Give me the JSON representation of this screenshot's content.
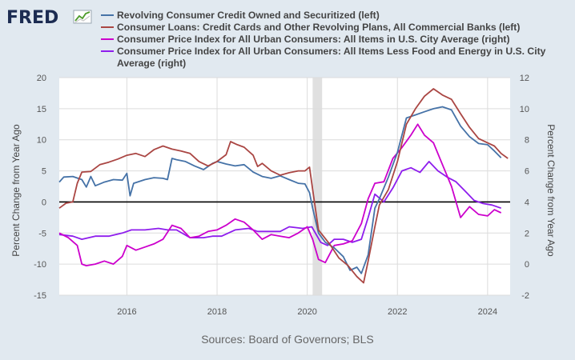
{
  "logo": {
    "text": "FRED"
  },
  "source": "Sources: Board of Governors; BLS",
  "chart_data": {
    "type": "line",
    "title": "",
    "ylabel_left": "Percent Change from Year Ago",
    "ylabel_right": "Percent Change from Year Ago",
    "ylim_left": [
      -15,
      20
    ],
    "ylim_right": [
      -2,
      12
    ],
    "left_ticks": [
      "20",
      "15",
      "10",
      "5",
      "0",
      "-5",
      "-10",
      "-15"
    ],
    "right_ticks": [
      "12",
      "10",
      "8",
      "6",
      "4",
      "2",
      "0",
      "-2"
    ],
    "x_ticks": [
      "2016",
      "2018",
      "2020",
      "2022",
      "2024"
    ],
    "xlim": [
      2014.5,
      2024.5
    ],
    "recession": [
      2020.12,
      2020.33
    ],
    "grid": true,
    "legend_position": "top",
    "colors": {
      "background": "#e1e9f0",
      "plot": "#ffffff",
      "grid": "#dcdcdc",
      "recession": "#e0e0e0",
      "zero_line": "#000000"
    },
    "series": [
      {
        "name": "Revolving Consumer Credit Owned and Securitized (left)",
        "axis": "left",
        "color": "#4572a7",
        "points": [
          [
            2014.5,
            3.2
          ],
          [
            2014.6,
            4
          ],
          [
            2014.8,
            4.1
          ],
          [
            2015.0,
            3.6
          ],
          [
            2015.1,
            2.4
          ],
          [
            2015.2,
            4.1
          ],
          [
            2015.3,
            2.6
          ],
          [
            2015.5,
            3.2
          ],
          [
            2015.7,
            3.6
          ],
          [
            2015.9,
            3.5
          ],
          [
            2016.0,
            4.6
          ],
          [
            2016.07,
            1.0
          ],
          [
            2016.15,
            3.0
          ],
          [
            2016.4,
            3.6
          ],
          [
            2016.6,
            3.9
          ],
          [
            2016.8,
            3.8
          ],
          [
            2016.9,
            3.6
          ],
          [
            2017.0,
            7.0
          ],
          [
            2017.1,
            6.8
          ],
          [
            2017.3,
            6.5
          ],
          [
            2017.5,
            5.8
          ],
          [
            2017.7,
            5.2
          ],
          [
            2017.9,
            6.2
          ],
          [
            2018.0,
            6.5
          ],
          [
            2018.2,
            6.1
          ],
          [
            2018.4,
            5.8
          ],
          [
            2018.6,
            6.0
          ],
          [
            2018.8,
            4.8
          ],
          [
            2019.0,
            4.1
          ],
          [
            2019.2,
            3.8
          ],
          [
            2019.4,
            4.2
          ],
          [
            2019.6,
            3.6
          ],
          [
            2019.8,
            3.0
          ],
          [
            2019.95,
            2.9
          ],
          [
            2020.05,
            1.5
          ],
          [
            2020.12,
            -1.0
          ],
          [
            2020.25,
            -5.0
          ],
          [
            2020.4,
            -6.5
          ],
          [
            2020.6,
            -7.4
          ],
          [
            2020.8,
            -8.8
          ],
          [
            2020.95,
            -11.0
          ],
          [
            2021.1,
            -10.5
          ],
          [
            2021.2,
            -11.5
          ],
          [
            2021.35,
            -8.5
          ],
          [
            2021.5,
            -1.0
          ],
          [
            2021.6,
            0.5
          ],
          [
            2021.8,
            4.0
          ],
          [
            2022.0,
            8.0
          ],
          [
            2022.2,
            13.5
          ],
          [
            2022.4,
            14.0
          ],
          [
            2022.6,
            14.5
          ],
          [
            2022.8,
            15.0
          ],
          [
            2023.0,
            15.3
          ],
          [
            2023.2,
            14.8
          ],
          [
            2023.4,
            12.2
          ],
          [
            2023.6,
            10.5
          ],
          [
            2023.8,
            9.4
          ],
          [
            2024.0,
            9.2
          ],
          [
            2024.15,
            8.2
          ],
          [
            2024.3,
            7.1
          ]
        ]
      },
      {
        "name": "Consumer Loans: Credit Cards and Other Revolving Plans, All Commercial Banks (left)",
        "axis": "left",
        "color": "#aa4643",
        "points": [
          [
            2014.5,
            -1.0
          ],
          [
            2014.65,
            -0.2
          ],
          [
            2014.8,
            0.0
          ],
          [
            2014.9,
            3.0
          ],
          [
            2015.0,
            4.8
          ],
          [
            2015.2,
            4.9
          ],
          [
            2015.4,
            6.0
          ],
          [
            2015.6,
            6.4
          ],
          [
            2015.8,
            6.9
          ],
          [
            2016.0,
            7.5
          ],
          [
            2016.2,
            7.8
          ],
          [
            2016.4,
            7.3
          ],
          [
            2016.6,
            8.4
          ],
          [
            2016.8,
            9.0
          ],
          [
            2017.0,
            8.5
          ],
          [
            2017.2,
            8.2
          ],
          [
            2017.4,
            7.8
          ],
          [
            2017.6,
            6.5
          ],
          [
            2017.8,
            5.8
          ],
          [
            2018.0,
            6.5
          ],
          [
            2018.2,
            7.6
          ],
          [
            2018.3,
            9.7
          ],
          [
            2018.45,
            9.2
          ],
          [
            2018.6,
            8.8
          ],
          [
            2018.8,
            7.5
          ],
          [
            2018.9,
            5.7
          ],
          [
            2019.0,
            6.2
          ],
          [
            2019.2,
            5.0
          ],
          [
            2019.4,
            4.3
          ],
          [
            2019.6,
            4.7
          ],
          [
            2019.8,
            5.0
          ],
          [
            2019.95,
            5.0
          ],
          [
            2020.05,
            5.6
          ],
          [
            2020.12,
            2.0
          ],
          [
            2020.25,
            -4.5
          ],
          [
            2020.5,
            -6.8
          ],
          [
            2020.7,
            -9.0
          ],
          [
            2020.9,
            -10.2
          ],
          [
            2021.1,
            -12.0
          ],
          [
            2021.25,
            -13.0
          ],
          [
            2021.35,
            -9.5
          ],
          [
            2021.5,
            -4.0
          ],
          [
            2021.6,
            -0.5
          ],
          [
            2021.8,
            2.0
          ],
          [
            2022.0,
            6.5
          ],
          [
            2022.2,
            12.5
          ],
          [
            2022.4,
            15.0
          ],
          [
            2022.6,
            17.0
          ],
          [
            2022.8,
            18.2
          ],
          [
            2023.0,
            17.2
          ],
          [
            2023.2,
            16.5
          ],
          [
            2023.4,
            14.2
          ],
          [
            2023.6,
            12.0
          ],
          [
            2023.8,
            10.2
          ],
          [
            2024.0,
            9.5
          ],
          [
            2024.15,
            9.0
          ],
          [
            2024.3,
            7.8
          ],
          [
            2024.45,
            7.0
          ]
        ]
      },
      {
        "name": "Consumer Price Index for All Urban Consumers: All Items in U.S. City Average (right)",
        "axis": "right",
        "color": "#cc00cc",
        "points": [
          [
            2014.5,
            2.0
          ],
          [
            2014.7,
            1.7
          ],
          [
            2014.9,
            1.2
          ],
          [
            2015.0,
            0.0
          ],
          [
            2015.1,
            -0.1
          ],
          [
            2015.3,
            0.0
          ],
          [
            2015.5,
            0.2
          ],
          [
            2015.7,
            0.0
          ],
          [
            2015.9,
            0.5
          ],
          [
            2016.0,
            1.2
          ],
          [
            2016.2,
            0.9
          ],
          [
            2016.4,
            1.1
          ],
          [
            2016.6,
            1.3
          ],
          [
            2016.8,
            1.6
          ],
          [
            2017.0,
            2.5
          ],
          [
            2017.2,
            2.3
          ],
          [
            2017.4,
            1.7
          ],
          [
            2017.6,
            1.8
          ],
          [
            2017.8,
            2.1
          ],
          [
            2018.0,
            2.2
          ],
          [
            2018.2,
            2.5
          ],
          [
            2018.4,
            2.9
          ],
          [
            2018.6,
            2.7
          ],
          [
            2018.8,
            2.2
          ],
          [
            2019.0,
            1.6
          ],
          [
            2019.2,
            1.9
          ],
          [
            2019.4,
            1.8
          ],
          [
            2019.6,
            1.7
          ],
          [
            2019.8,
            2.0
          ],
          [
            2020.0,
            2.4
          ],
          [
            2020.12,
            1.6
          ],
          [
            2020.25,
            0.3
          ],
          [
            2020.4,
            0.1
          ],
          [
            2020.6,
            1.2
          ],
          [
            2020.8,
            1.3
          ],
          [
            2021.0,
            1.5
          ],
          [
            2021.2,
            2.6
          ],
          [
            2021.35,
            4.2
          ],
          [
            2021.5,
            5.2
          ],
          [
            2021.7,
            5.3
          ],
          [
            2021.9,
            6.8
          ],
          [
            2022.1,
            7.5
          ],
          [
            2022.3,
            8.3
          ],
          [
            2022.45,
            9.0
          ],
          [
            2022.6,
            8.3
          ],
          [
            2022.8,
            7.8
          ],
          [
            2023.0,
            6.4
          ],
          [
            2023.2,
            5.0
          ],
          [
            2023.4,
            3.0
          ],
          [
            2023.6,
            3.7
          ],
          [
            2023.8,
            3.2
          ],
          [
            2024.0,
            3.1
          ],
          [
            2024.15,
            3.5
          ],
          [
            2024.3,
            3.3
          ]
        ]
      },
      {
        "name": "Consumer Price Index for All Urban Consumers: All Items Less Food and Energy in U.S. City Average (right)",
        "axis": "right",
        "color": "#8e1ded",
        "points": [
          [
            2014.5,
            1.9
          ],
          [
            2014.8,
            1.8
          ],
          [
            2015.0,
            1.6
          ],
          [
            2015.3,
            1.8
          ],
          [
            2015.6,
            1.8
          ],
          [
            2015.9,
            2.0
          ],
          [
            2016.1,
            2.2
          ],
          [
            2016.4,
            2.2
          ],
          [
            2016.7,
            2.3
          ],
          [
            2016.9,
            2.2
          ],
          [
            2017.1,
            2.2
          ],
          [
            2017.4,
            1.7
          ],
          [
            2017.7,
            1.7
          ],
          [
            2017.9,
            1.8
          ],
          [
            2018.1,
            1.8
          ],
          [
            2018.4,
            2.2
          ],
          [
            2018.7,
            2.3
          ],
          [
            2018.9,
            2.1
          ],
          [
            2019.1,
            2.1
          ],
          [
            2019.4,
            2.1
          ],
          [
            2019.6,
            2.4
          ],
          [
            2019.9,
            2.3
          ],
          [
            2020.1,
            2.4
          ],
          [
            2020.3,
            1.4
          ],
          [
            2020.45,
            1.2
          ],
          [
            2020.6,
            1.6
          ],
          [
            2020.8,
            1.6
          ],
          [
            2021.0,
            1.4
          ],
          [
            2021.2,
            1.6
          ],
          [
            2021.35,
            3.0
          ],
          [
            2021.5,
            4.5
          ],
          [
            2021.7,
            4.0
          ],
          [
            2021.9,
            4.9
          ],
          [
            2022.1,
            6.0
          ],
          [
            2022.3,
            6.2
          ],
          [
            2022.5,
            5.9
          ],
          [
            2022.7,
            6.6
          ],
          [
            2022.9,
            6.0
          ],
          [
            2023.1,
            5.6
          ],
          [
            2023.3,
            5.3
          ],
          [
            2023.5,
            4.7
          ],
          [
            2023.7,
            4.1
          ],
          [
            2023.9,
            3.9
          ],
          [
            2024.1,
            3.8
          ],
          [
            2024.3,
            3.6
          ]
        ]
      }
    ]
  }
}
